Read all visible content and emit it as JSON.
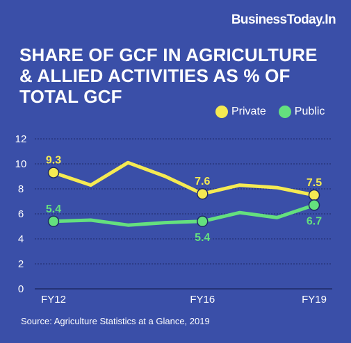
{
  "brand": "BusinessToday.In",
  "title_lines": [
    "SHARE OF GCF IN AGRICULTURE",
    "& ALLIED ACTIVITIES AS % OF",
    "TOTAL GCF"
  ],
  "source": "Source: Agriculture Statistics at a Glance, 2019",
  "colors": {
    "background": "#3a4fa8",
    "private": "#f5ea52",
    "public": "#64e07e",
    "text": "#ffffff"
  },
  "chart_data": {
    "type": "line",
    "title": "SHARE OF GCF IN AGRICULTURE & ALLIED ACTIVITIES AS % OF TOTAL GCF",
    "xlabel": "",
    "ylabel": "",
    "ylim": [
      0,
      12
    ],
    "yticks": [
      0,
      2,
      4,
      6,
      8,
      10,
      12
    ],
    "x": [
      "FY12",
      "FY13",
      "FY14",
      "FY15",
      "FY16",
      "FY17",
      "FY18",
      "FY19"
    ],
    "x_tick_labels": [
      "FY12",
      "",
      "",
      "",
      "FY16",
      "",
      "",
      "FY19"
    ],
    "grid": "horizontal dashed",
    "legend": "top-right",
    "series": [
      {
        "name": "Private",
        "color": "#f5ea52",
        "values": [
          9.3,
          8.3,
          10.1,
          9.0,
          7.6,
          8.3,
          8.1,
          7.5
        ],
        "labeled_points": [
          0,
          4,
          7
        ],
        "label_text": [
          "9.3",
          "7.6",
          "7.5"
        ],
        "label_pos": [
          "above",
          "above",
          "above"
        ]
      },
      {
        "name": "Public",
        "color": "#64e07e",
        "values": [
          5.4,
          5.5,
          5.1,
          5.3,
          5.4,
          6.1,
          5.7,
          6.7
        ],
        "labeled_points": [
          0,
          4,
          7
        ],
        "label_text": [
          "5.4",
          "5.4",
          "6.7"
        ],
        "label_pos": [
          "above",
          "below",
          "below"
        ]
      }
    ]
  }
}
